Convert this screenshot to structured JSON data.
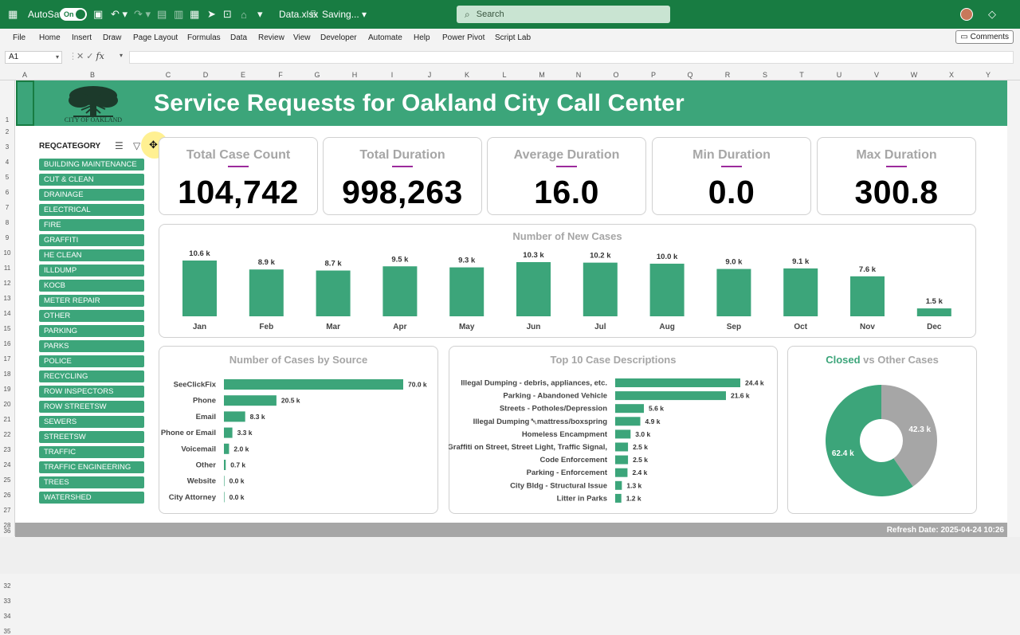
{
  "titlebar": {
    "autosave_label": "AutoSave",
    "autosave_state": "On",
    "filename": "Data.xlsx",
    "save_status": "Saving...",
    "search_placeholder": "Search"
  },
  "menu": {
    "items": [
      "File",
      "Home",
      "Insert",
      "Draw",
      "Page Layout",
      "Formulas",
      "Data",
      "Review",
      "View",
      "Developer",
      "Automate",
      "Help",
      "Power Pivot",
      "Script Lab"
    ],
    "comments": "Comments"
  },
  "formula_bar": {
    "name_box": "A1",
    "fx": "fx"
  },
  "columns": [
    "A",
    "B",
    "C",
    "D",
    "E",
    "F",
    "G",
    "H",
    "I",
    "J",
    "K",
    "L",
    "M",
    "N",
    "O",
    "P",
    "Q",
    "R",
    "S",
    "T",
    "U",
    "V",
    "W",
    "X",
    "Y"
  ],
  "rows": [
    "1",
    "2",
    "3",
    "4",
    "5",
    "6",
    "7",
    "8",
    "9",
    "10",
    "11",
    "12",
    "13",
    "14",
    "15",
    "16",
    "17",
    "18",
    "19",
    "20",
    "21",
    "22",
    "23",
    "24",
    "25",
    "26",
    "27",
    "28",
    "29",
    "30",
    "31",
    "32",
    "33",
    "34",
    "35",
    "36"
  ],
  "dashboard": {
    "logo_text": "CITY OF OAKLAND",
    "title": "Service Requests for Oakland City Call Center",
    "refresh": "Refresh Date: 2025-04-24 10:26"
  },
  "slicer": {
    "header": "REQCATEGORY",
    "items": [
      "BUILDING MAINTENANCE",
      "CUT & CLEAN",
      "DRAINAGE",
      "ELECTRICAL",
      "FIRE",
      "GRAFFITI",
      "HE CLEAN",
      "ILLDUMP",
      "KOCB",
      "METER REPAIR",
      "OTHER",
      "PARKING",
      "PARKS",
      "POLICE",
      "RECYCLING",
      "ROW INSPECTORS",
      "ROW STREETSW",
      "SEWERS",
      "STREETSW",
      "TRAFFIC",
      "TRAFFIC ENGINEERING",
      "TREES",
      "WATERSHED"
    ]
  },
  "kpis": [
    {
      "label": "Total Case Count",
      "value": "104,742"
    },
    {
      "label": "Total Duration",
      "value": "998,263"
    },
    {
      "label": "Average Duration",
      "value": "16.0"
    },
    {
      "label": "Min Duration",
      "value": "0.0"
    },
    {
      "label": "Max Duration",
      "value": "300.8"
    }
  ],
  "chart_data": [
    {
      "type": "bar",
      "title": "Number of New Cases",
      "categories": [
        "Jan",
        "Feb",
        "Mar",
        "Apr",
        "May",
        "Jun",
        "Jul",
        "Aug",
        "Sep",
        "Oct",
        "Nov",
        "Dec"
      ],
      "values": [
        10.6,
        8.9,
        8.7,
        9.5,
        9.3,
        10.3,
        10.2,
        10.0,
        9.0,
        9.1,
        7.6,
        1.5
      ],
      "labels": [
        "10.6 k",
        "8.9 k",
        "8.7 k",
        "9.5 k",
        "9.3 k",
        "10.3 k",
        "10.2 k",
        "10.0 k",
        "9.0 k",
        "9.1 k",
        "7.6 k",
        "1.5 k"
      ],
      "color": "#3ca57a"
    },
    {
      "type": "bar",
      "orientation": "horizontal",
      "title": "Number of Cases by Source",
      "categories": [
        "SeeClickFix",
        "Phone",
        "Email",
        "Phone or Email",
        "Voicemail",
        "Other",
        "Website",
        "City Attorney"
      ],
      "values": [
        70.0,
        20.5,
        8.3,
        3.3,
        2.0,
        0.7,
        0.0,
        0.0
      ],
      "labels": [
        "70.0 k",
        "20.5 k",
        "8.3 k",
        "3.3 k",
        "2.0 k",
        "0.7 k",
        "0.0 k",
        "0.0 k"
      ],
      "color": "#3ca57a"
    },
    {
      "type": "bar",
      "orientation": "horizontal",
      "title": "Top 10 Case Descriptions",
      "categories": [
        "Illegal Dumping - debris, appliances, etc.",
        "Parking - Abandoned Vehicle",
        "Streets - Potholes/Depression",
        "Illegal Dumping ␀mattress/boxspring",
        "Homeless Encampment",
        "Graffiti on Street, Street Light, Traffic Signal,",
        "Code Enforcement",
        "Parking - Enforcement",
        "City Bldg - Structural Issue",
        "Litter in Parks"
      ],
      "values": [
        24.4,
        21.6,
        5.6,
        4.9,
        3.0,
        2.5,
        2.5,
        2.4,
        1.3,
        1.2
      ],
      "labels": [
        "24.4 k",
        "21.6 k",
        "5.6 k",
        "4.9 k",
        "3.0 k",
        "2.5 k",
        "2.5 k",
        "2.4 k",
        "1.3 k",
        "1.2 k"
      ],
      "color": "#3ca57a"
    },
    {
      "type": "pie",
      "title_parts": [
        "Closed",
        " vs Other Cases"
      ],
      "slices": [
        {
          "name": "Closed",
          "value": 62.4,
          "label": "62.4 k",
          "color": "#3ca57a"
        },
        {
          "name": "Other",
          "value": 42.3,
          "label": "42.3 k",
          "color": "#a6a6a6"
        }
      ]
    }
  ]
}
